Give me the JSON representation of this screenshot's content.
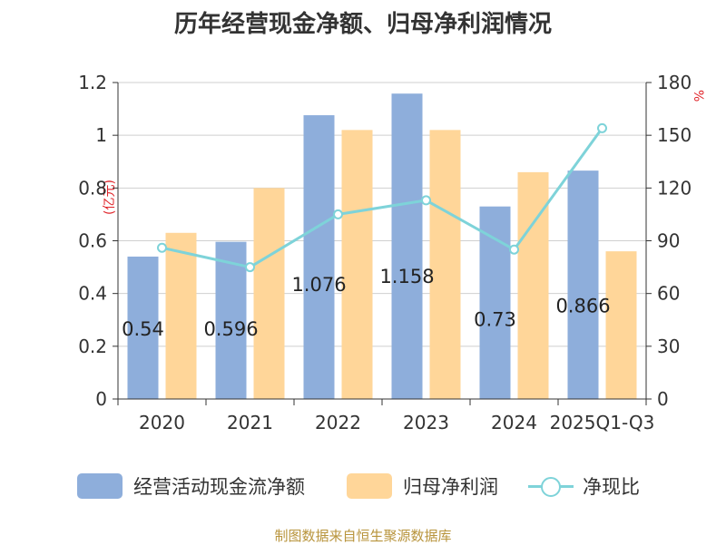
{
  "title": "历年经营现金净额、归母净利润情况",
  "source_note": "制图数据来自恒生聚源数据库",
  "units": {
    "left": "(亿元)",
    "right": "%"
  },
  "colors": {
    "bar1": "#8eaedb",
    "bar2": "#ffd699",
    "line": "#7ed3d9",
    "title": "#333333",
    "unit": "#e0242a",
    "source": "#b8943c"
  },
  "legend": [
    {
      "label": "经营活动现金流净额",
      "kind": "bar",
      "color": "#8eaedb"
    },
    {
      "label": "归母净利润",
      "kind": "bar",
      "color": "#ffd699"
    },
    {
      "label": "净现比",
      "kind": "line",
      "color": "#7ed3d9"
    }
  ],
  "chart_data": {
    "type": "bar",
    "categories": [
      "2020",
      "2021",
      "2022",
      "2023",
      "2024",
      "2025Q1-Q3"
    ],
    "series": [
      {
        "name": "经营活动现金流净额",
        "type": "bar",
        "axis": "left",
        "values": [
          0.54,
          0.596,
          1.076,
          1.158,
          0.73,
          0.866
        ],
        "data_labels": [
          "0.54",
          "0.596",
          "1.076",
          "1.158",
          "0.73",
          "0.866"
        ]
      },
      {
        "name": "归母净利润",
        "type": "bar",
        "axis": "left",
        "values": [
          0.63,
          0.8,
          1.02,
          1.02,
          0.86,
          0.56
        ]
      },
      {
        "name": "净现比",
        "type": "line",
        "axis": "right",
        "values": [
          86,
          75,
          105,
          113,
          85,
          154
        ]
      }
    ],
    "y_left": {
      "min": 0,
      "max": 1.2,
      "ticks": [
        "0",
        "0.2",
        "0.4",
        "0.6",
        "0.8",
        "1",
        "1.2"
      ]
    },
    "y_right": {
      "min": 0,
      "max": 180,
      "ticks": [
        "0",
        "30",
        "60",
        "90",
        "120",
        "150",
        "180"
      ]
    },
    "grid": true,
    "legend_position": "bottom"
  }
}
